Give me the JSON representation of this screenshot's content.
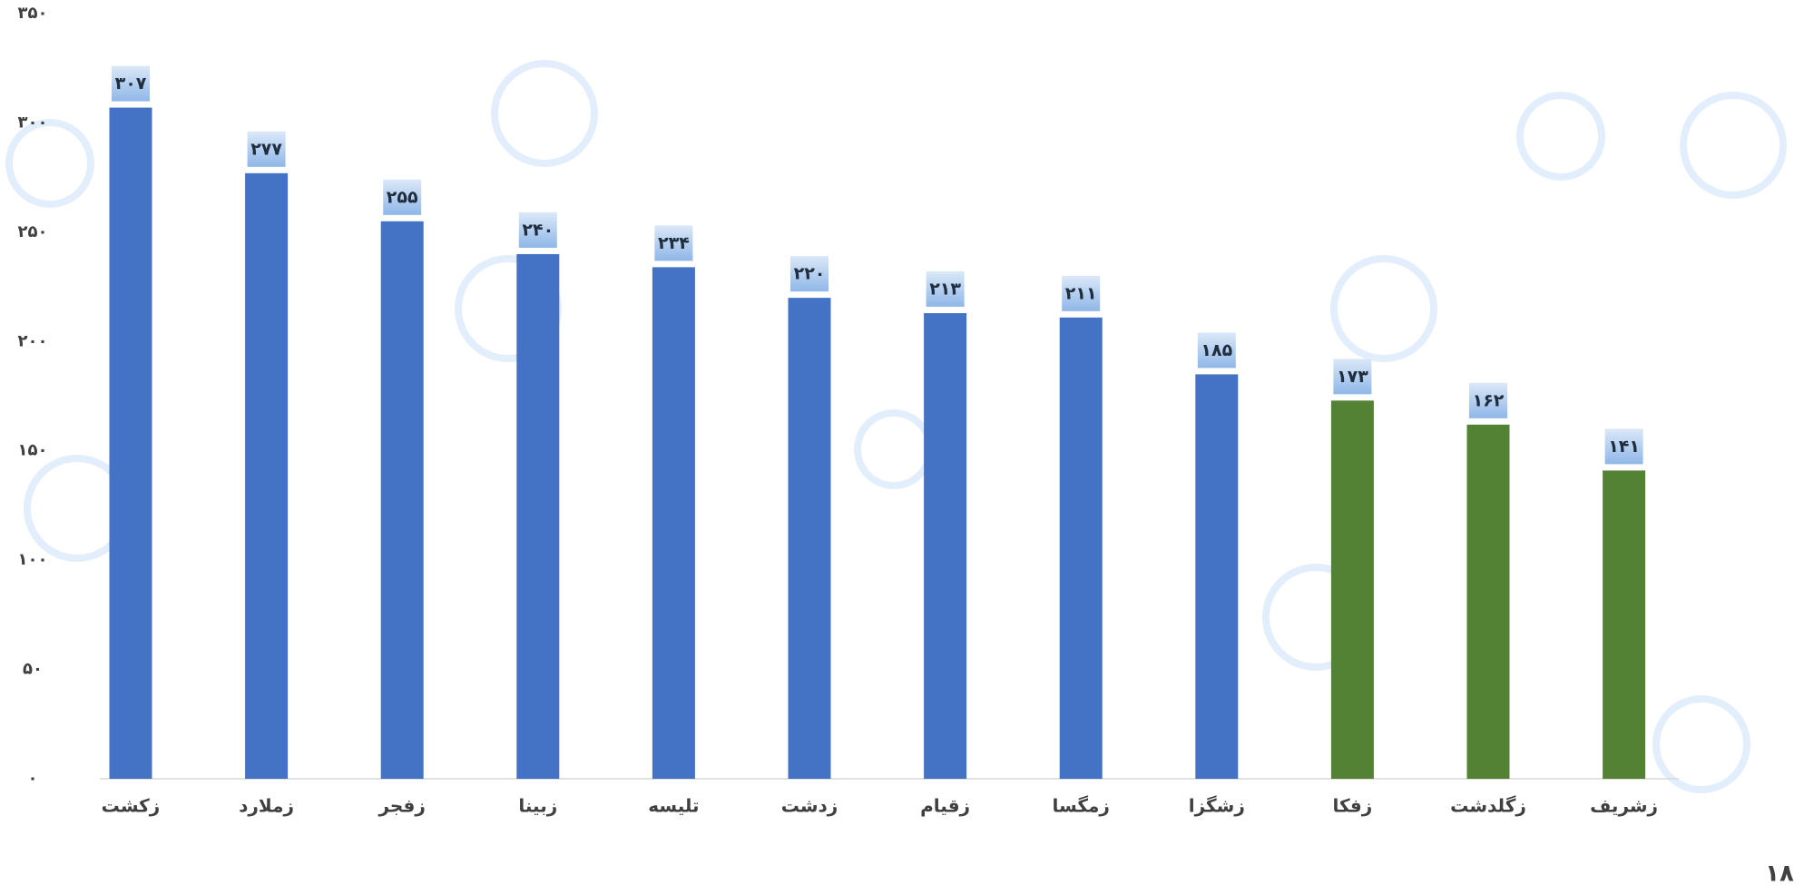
{
  "chart_data": {
    "type": "bar",
    "categories": [
      "زکشت",
      "زملارد",
      "زفجر",
      "زبینا",
      "تلیسه",
      "زدشت",
      "زقیام",
      "زمگسا",
      "زشگزا",
      "زفکا",
      "زگلدشت",
      "زشریف"
    ],
    "values": [
      307,
      277,
      255,
      240,
      234,
      220,
      213,
      211,
      185,
      173,
      162,
      141
    ],
    "value_labels": [
      "۳۰۷",
      "۲۷۷",
      "۲۵۵",
      "۲۴۰",
      "۲۳۴",
      "۲۲۰",
      "۲۱۳",
      "۲۱۱",
      "۱۸۵",
      "۱۷۳",
      "۱۶۲",
      "۱۴۱"
    ],
    "colors": [
      "#4472c4",
      "#4472c4",
      "#4472c4",
      "#4472c4",
      "#4472c4",
      "#4472c4",
      "#4472c4",
      "#4472c4",
      "#4472c4",
      "#548235",
      "#548235",
      "#548235"
    ],
    "ylim": [
      0,
      350
    ],
    "yticks": [
      {
        "value": 0,
        "label": "۰"
      },
      {
        "value": 50,
        "label": "۵۰"
      },
      {
        "value": 100,
        "label": "۱۰۰"
      },
      {
        "value": 150,
        "label": "۱۵۰"
      },
      {
        "value": 200,
        "label": "۲۰۰"
      },
      {
        "value": 250,
        "label": "۲۵۰"
      },
      {
        "value": 300,
        "label": "۳۰۰"
      },
      {
        "value": 350,
        "label": "۳۵۰"
      }
    ],
    "grid": false
  },
  "page_number": "۱۸"
}
